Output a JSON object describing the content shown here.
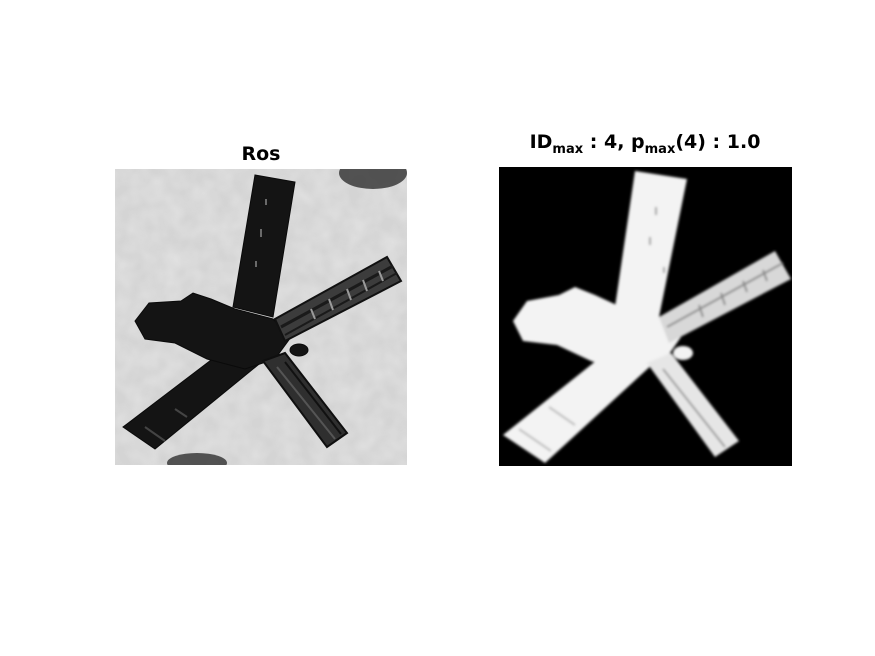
{
  "left_panel": {
    "title": "Ros"
  },
  "right_panel": {
    "title_id": "ID",
    "title_id_sub": "max",
    "title_id_value": " : 4, p",
    "title_p_sub": "max",
    "title_p_value": "(4) : 1.0"
  },
  "colors": {
    "background": "#ffffff",
    "left_background": "#cfcfcf",
    "crystal_dark": "#121212",
    "right_background": "#000000",
    "crystal_light": "#f4f4f4"
  }
}
